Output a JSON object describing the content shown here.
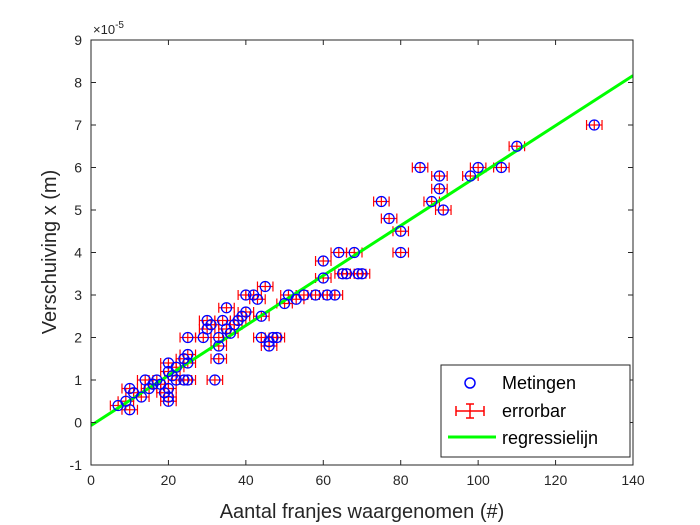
{
  "chart_data": {
    "type": "scatter",
    "title": "",
    "xlabel": "Aantal franjes waargenomen (#)",
    "ylabel": "Verschuiving x (m)",
    "xlim": [
      0,
      140
    ],
    "ylim": [
      -1,
      9
    ],
    "y_scale_exponent": "×10⁻⁵",
    "y_exponent_base": "×10",
    "y_exponent_power": "-5",
    "xticks": [
      "0",
      "20",
      "40",
      "60",
      "80",
      "100",
      "120",
      "140"
    ],
    "yticks": [
      "-1",
      "0",
      "1",
      "2",
      "3",
      "4",
      "5",
      "6",
      "7",
      "8",
      "9"
    ],
    "grid": false,
    "legend_position": "bottom-right",
    "legend": [
      "Metingen",
      "errorbar",
      "regressielijn"
    ],
    "x_error": 2,
    "marker_color": "#0000ff",
    "errorbar_color": "#ff0000",
    "line_color": "#00ff00",
    "points": [
      [
        7,
        0.4
      ],
      [
        9,
        0.5
      ],
      [
        10,
        0.3
      ],
      [
        10,
        0.8
      ],
      [
        11,
        0.7
      ],
      [
        13,
        0.6
      ],
      [
        14,
        1.0
      ],
      [
        15,
        0.8
      ],
      [
        16,
        0.9
      ],
      [
        17,
        1.0
      ],
      [
        18,
        0.9
      ],
      [
        19,
        0.7
      ],
      [
        20,
        0.5
      ],
      [
        20,
        0.6
      ],
      [
        20,
        0.8
      ],
      [
        20,
        1.2
      ],
      [
        20,
        1.4
      ],
      [
        21,
        1.1
      ],
      [
        22,
        1.3
      ],
      [
        22,
        1.0
      ],
      [
        24,
        1.5
      ],
      [
        24,
        1.0
      ],
      [
        25,
        1.6
      ],
      [
        25,
        1.4
      ],
      [
        25,
        1.0
      ],
      [
        25,
        2.0
      ],
      [
        29,
        2.0
      ],
      [
        30,
        2.4
      ],
      [
        30,
        2.2
      ],
      [
        31,
        2.3
      ],
      [
        32,
        1.0
      ],
      [
        33,
        1.5
      ],
      [
        33,
        1.8
      ],
      [
        33,
        2.0
      ],
      [
        34,
        2.4
      ],
      [
        35,
        2.7
      ],
      [
        35,
        2.2
      ],
      [
        36,
        2.1
      ],
      [
        37,
        2.3
      ],
      [
        38,
        2.4
      ],
      [
        39,
        2.5
      ],
      [
        40,
        2.6
      ],
      [
        40,
        3.0
      ],
      [
        42,
        3.0
      ],
      [
        43,
        2.9
      ],
      [
        44,
        2.5
      ],
      [
        44,
        2.0
      ],
      [
        45,
        3.2
      ],
      [
        46,
        1.9
      ],
      [
        46,
        1.8
      ],
      [
        47,
        2.0
      ],
      [
        48,
        2.0
      ],
      [
        50,
        2.8
      ],
      [
        51,
        3.0
      ],
      [
        53,
        2.9
      ],
      [
        55,
        3.0
      ],
      [
        58,
        3.0
      ],
      [
        60,
        3.8
      ],
      [
        60,
        3.4
      ],
      [
        61,
        3.0
      ],
      [
        63,
        3.0
      ],
      [
        64,
        4.0
      ],
      [
        65,
        3.5
      ],
      [
        66,
        3.5
      ],
      [
        68,
        4.0
      ],
      [
        69,
        3.5
      ],
      [
        70,
        3.5
      ],
      [
        75,
        5.2
      ],
      [
        77,
        4.8
      ],
      [
        80,
        4.0
      ],
      [
        80,
        4.5
      ],
      [
        85,
        6.0
      ],
      [
        88,
        5.2
      ],
      [
        90,
        5.8
      ],
      [
        90,
        5.5
      ],
      [
        91,
        5.0
      ],
      [
        98,
        5.8
      ],
      [
        100,
        6.0
      ],
      [
        106,
        6.0
      ],
      [
        110,
        6.5
      ],
      [
        130,
        7.0
      ]
    ],
    "regression_line": {
      "slope": 0.0588,
      "intercept": -0.07
    }
  }
}
